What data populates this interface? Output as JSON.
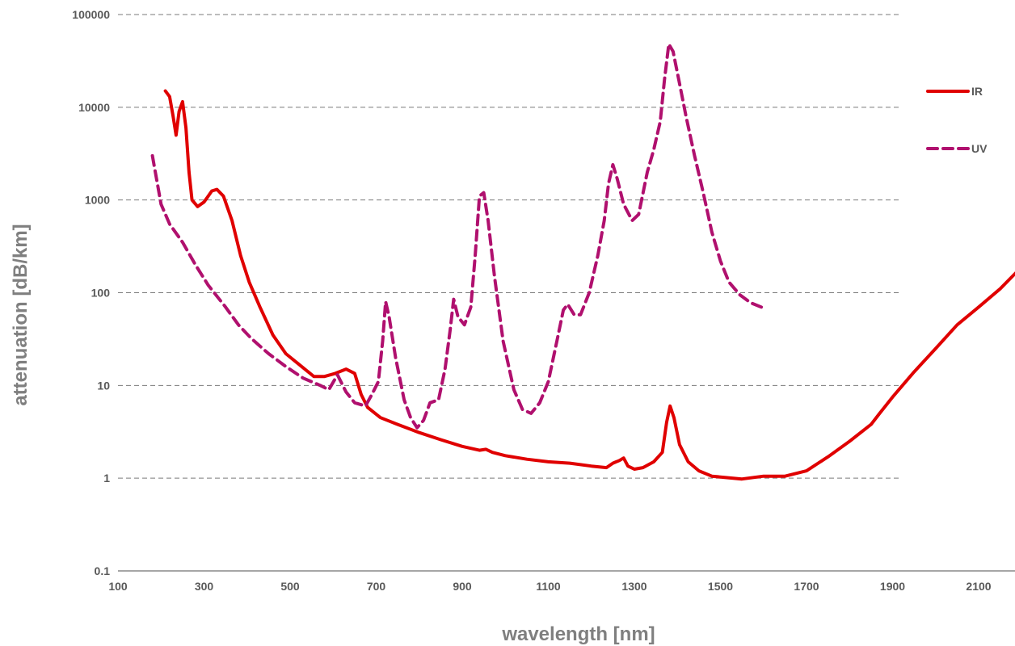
{
  "chart_data": {
    "type": "line",
    "title": "",
    "xlabel": "wavelength [nm]",
    "ylabel": "attenuation [dB/km]",
    "y_scale": "log",
    "xlim": [
      100,
      2200
    ],
    "ylim": [
      0.1,
      100000
    ],
    "x_ticks": [
      "100",
      "300",
      "500",
      "700",
      "900",
      "1100",
      "1300",
      "1500",
      "1700",
      "1900",
      "2100"
    ],
    "y_ticks": [
      "0.1",
      "1",
      "10",
      "100",
      "1000",
      "10000",
      "100000"
    ],
    "grid": "horizontal dashed",
    "legend_position": "top-right",
    "series": [
      {
        "name": "IR",
        "color": "#e00000",
        "style": "solid",
        "points": [
          [
            210,
            15000
          ],
          [
            220,
            13000
          ],
          [
            228,
            8000
          ],
          [
            235,
            5000
          ],
          [
            242,
            9000
          ],
          [
            250,
            11500
          ],
          [
            258,
            6000
          ],
          [
            265,
            2000
          ],
          [
            272,
            1000
          ],
          [
            285,
            850
          ],
          [
            300,
            950
          ],
          [
            318,
            1250
          ],
          [
            330,
            1300
          ],
          [
            345,
            1100
          ],
          [
            365,
            600
          ],
          [
            385,
            250
          ],
          [
            405,
            130
          ],
          [
            430,
            70
          ],
          [
            460,
            35
          ],
          [
            490,
            22
          ],
          [
            520,
            17
          ],
          [
            555,
            12.5
          ],
          [
            580,
            12.5
          ],
          [
            605,
            13.5
          ],
          [
            630,
            15
          ],
          [
            650,
            13.5
          ],
          [
            665,
            8
          ],
          [
            680,
            5.8
          ],
          [
            710,
            4.5
          ],
          [
            750,
            3.8
          ],
          [
            800,
            3.1
          ],
          [
            850,
            2.6
          ],
          [
            900,
            2.2
          ],
          [
            940,
            2.0
          ],
          [
            955,
            2.05
          ],
          [
            970,
            1.9
          ],
          [
            1000,
            1.75
          ],
          [
            1050,
            1.6
          ],
          [
            1100,
            1.5
          ],
          [
            1150,
            1.45
          ],
          [
            1200,
            1.35
          ],
          [
            1235,
            1.3
          ],
          [
            1250,
            1.45
          ],
          [
            1265,
            1.55
          ],
          [
            1275,
            1.65
          ],
          [
            1285,
            1.35
          ],
          [
            1300,
            1.25
          ],
          [
            1320,
            1.3
          ],
          [
            1345,
            1.5
          ],
          [
            1365,
            1.9
          ],
          [
            1375,
            4.0
          ],
          [
            1383,
            6.0
          ],
          [
            1392,
            4.5
          ],
          [
            1405,
            2.3
          ],
          [
            1425,
            1.5
          ],
          [
            1450,
            1.2
          ],
          [
            1480,
            1.05
          ],
          [
            1510,
            1.02
          ],
          [
            1550,
            0.98
          ],
          [
            1600,
            1.05
          ],
          [
            1650,
            1.05
          ],
          [
            1700,
            1.2
          ],
          [
            1750,
            1.7
          ],
          [
            1800,
            2.5
          ],
          [
            1850,
            3.8
          ],
          [
            1870,
            5.0
          ],
          [
            1900,
            7.5
          ],
          [
            1950,
            14
          ],
          [
            2000,
            25
          ],
          [
            2050,
            45
          ],
          [
            2100,
            70
          ],
          [
            2150,
            110
          ],
          [
            2190,
            170
          ]
        ]
      },
      {
        "name": "UV",
        "color": "#b0106e",
        "style": "dashed",
        "points": [
          [
            180,
            3000
          ],
          [
            200,
            900
          ],
          [
            220,
            550
          ],
          [
            250,
            350
          ],
          [
            280,
            200
          ],
          [
            310,
            120
          ],
          [
            350,
            70
          ],
          [
            380,
            45
          ],
          [
            410,
            32
          ],
          [
            450,
            22
          ],
          [
            490,
            16
          ],
          [
            530,
            12
          ],
          [
            570,
            10
          ],
          [
            590,
            9
          ],
          [
            610,
            13
          ],
          [
            630,
            8.5
          ],
          [
            650,
            6.5
          ],
          [
            675,
            6
          ],
          [
            690,
            8
          ],
          [
            705,
            11
          ],
          [
            715,
            30
          ],
          [
            722,
            80
          ],
          [
            730,
            55
          ],
          [
            745,
            20
          ],
          [
            765,
            7
          ],
          [
            780,
            4.5
          ],
          [
            795,
            3.5
          ],
          [
            810,
            4.2
          ],
          [
            825,
            6.5
          ],
          [
            845,
            7
          ],
          [
            860,
            15
          ],
          [
            872,
            40
          ],
          [
            880,
            85
          ],
          [
            890,
            55
          ],
          [
            905,
            45
          ],
          [
            920,
            70
          ],
          [
            930,
            250
          ],
          [
            940,
            1100
          ],
          [
            950,
            1200
          ],
          [
            960,
            600
          ],
          [
            975,
            150
          ],
          [
            995,
            30
          ],
          [
            1020,
            9
          ],
          [
            1040,
            5.5
          ],
          [
            1060,
            5
          ],
          [
            1080,
            6.5
          ],
          [
            1100,
            11
          ],
          [
            1120,
            30
          ],
          [
            1135,
            65
          ],
          [
            1145,
            75
          ],
          [
            1160,
            58
          ],
          [
            1175,
            58
          ],
          [
            1195,
            100
          ],
          [
            1215,
            250
          ],
          [
            1230,
            600
          ],
          [
            1240,
            1500
          ],
          [
            1250,
            2400
          ],
          [
            1260,
            1700
          ],
          [
            1275,
            900
          ],
          [
            1295,
            600
          ],
          [
            1310,
            700
          ],
          [
            1330,
            2000
          ],
          [
            1345,
            3500
          ],
          [
            1360,
            7000
          ],
          [
            1370,
            20000
          ],
          [
            1380,
            48000
          ],
          [
            1390,
            40000
          ],
          [
            1405,
            18000
          ],
          [
            1420,
            8000
          ],
          [
            1440,
            3000
          ],
          [
            1460,
            1200
          ],
          [
            1480,
            450
          ],
          [
            1500,
            220
          ],
          [
            1520,
            130
          ],
          [
            1545,
            95
          ],
          [
            1570,
            78
          ],
          [
            1595,
            70
          ]
        ]
      }
    ]
  }
}
